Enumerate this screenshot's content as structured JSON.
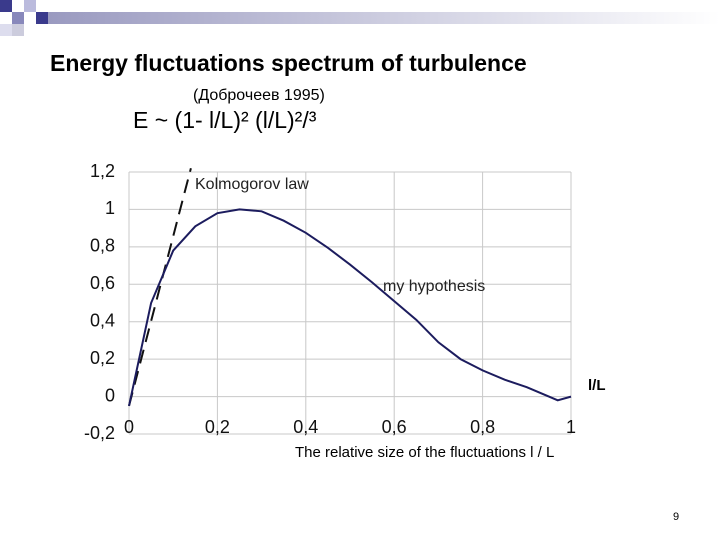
{
  "chart_data": {
    "type": "line",
    "title": "Energy fluctuations spectrum of turbulence",
    "subtitle": "(Доброчеев 1995)",
    "formula": "E  ~  (1- l/L)² (l/L)²/³",
    "x_label": "The relative size of the fluctuations  l / L",
    "x_axis_annotation": "l/L",
    "page_number": "9",
    "xlim": [
      0,
      1
    ],
    "ylim": [
      -0.2,
      1.2
    ],
    "xticks": [
      0,
      {
        "value": 0.2,
        "label": "0,2"
      },
      {
        "value": 0.4,
        "label": "0,4"
      },
      {
        "value": 0.6,
        "label": "0,6"
      },
      {
        "value": 0.8,
        "label": "0,8"
      },
      1
    ],
    "yticks": [
      {
        "value": 1.2,
        "label": "1,2"
      },
      1,
      {
        "value": 0.8,
        "label": "0,8"
      },
      {
        "value": 0.6,
        "label": "0,6"
      },
      {
        "value": 0.4,
        "label": "0,4"
      },
      {
        "value": 0.2,
        "label": "0,2"
      },
      0,
      {
        "value": -0.2,
        "label": "-0,2"
      }
    ],
    "grid": true,
    "series": [
      {
        "name": "Kolmogorov law",
        "color": "#111111",
        "dashed": true,
        "x": [
          0,
          0.14
        ],
        "values": [
          -0.05,
          1.22
        ]
      },
      {
        "name": "my hypothesis",
        "color": "#1c1c5e",
        "dashed": false,
        "x": [
          0,
          0.05,
          0.1,
          0.15,
          0.2,
          0.25,
          0.3,
          0.35,
          0.4,
          0.45,
          0.5,
          0.55,
          0.6,
          0.65,
          0.7,
          0.75,
          0.8,
          0.85,
          0.9,
          0.95,
          0.97,
          1
        ],
        "values": [
          -0.05,
          0.5,
          0.78,
          0.91,
          0.98,
          1,
          0.99,
          0.94,
          0.875,
          0.795,
          0.705,
          0.61,
          0.51,
          0.41,
          0.29,
          0.2,
          0.14,
          0.09,
          0.05,
          0,
          -0.02,
          0
        ]
      }
    ]
  }
}
